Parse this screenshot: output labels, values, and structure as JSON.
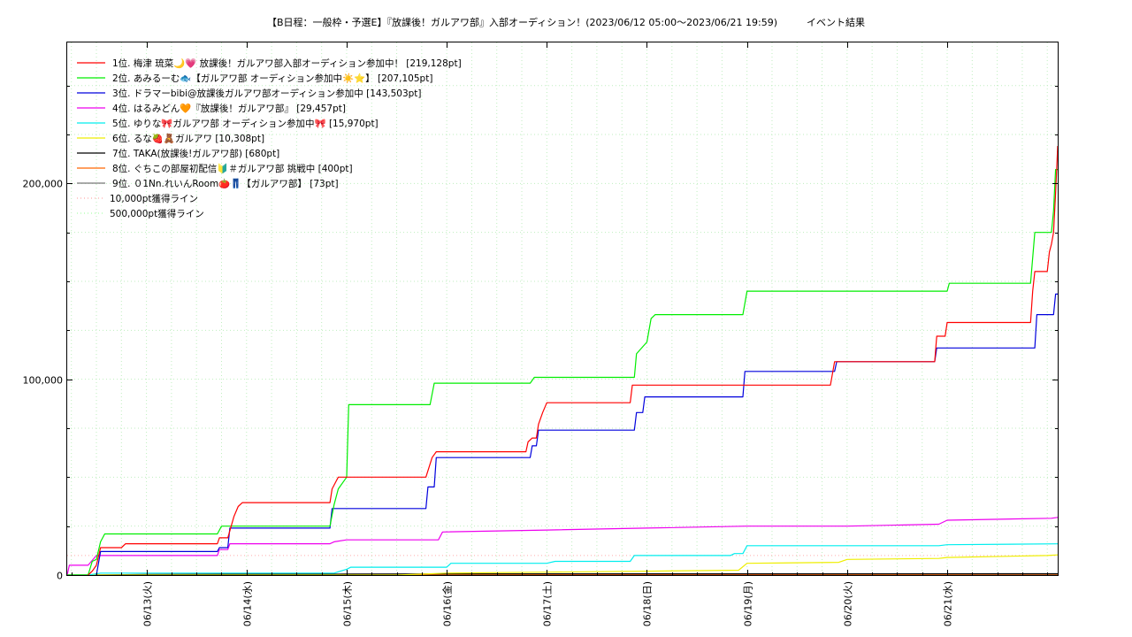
{
  "chart_data": {
    "type": "line",
    "title": "【B日程：一般枠・予選E】『放課後！ガルアワ部』入部オーディション！(2023/06/12 05:00〜2023/06/21 19:59)　　　イベント結果",
    "xlabel": "",
    "ylabel": "",
    "ylim": [
      0,
      272000
    ],
    "xlim": [
      "2023-06-12 05:00",
      "2023-06-22 02:30"
    ],
    "x_tick_labels": [
      "06/13(火)",
      "06/14(水)",
      "06/15(木)",
      "06/16(金)",
      "06/17(土)",
      "06/18(日)",
      "06/19(月)",
      "06/20(火)",
      "06/21(水)"
    ],
    "x_tick_dates": [
      "2023-06-13 00:00",
      "2023-06-14 00:00",
      "2023-06-15 00:00",
      "2023-06-16 00:00",
      "2023-06-17 00:00",
      "2023-06-18 00:00",
      "2023-06-19 00:00",
      "2023-06-20 00:00",
      "2023-06-21 00:00"
    ],
    "y_ticks": [
      0,
      100000,
      200000
    ],
    "y_tick_labels": [
      "0",
      "100,000",
      "200,000"
    ],
    "grid": true,
    "legend_position": "top-left",
    "series": [
      {
        "name": "1位. 梅津 琉菜🌙💗 放課後！ガルアワ部入部オーディション参加中！ [219,128pt]",
        "color": "#ff0000",
        "points": [
          [
            "2023-06-12 10:00",
            0
          ],
          [
            "2023-06-12 11:00",
            2000
          ],
          [
            "2023-06-12 12:00",
            5000
          ],
          [
            "2023-06-12 13:00",
            14000
          ],
          [
            "2023-06-12 18:00",
            14000
          ],
          [
            "2023-06-12 19:00",
            16000
          ],
          [
            "2023-06-13 17:00",
            16000
          ],
          [
            "2023-06-13 17:30",
            19000
          ],
          [
            "2023-06-13 19:30",
            19000
          ],
          [
            "2023-06-13 21:00",
            30000
          ],
          [
            "2023-06-13 22:00",
            35000
          ],
          [
            "2023-06-13 23:00",
            37000
          ],
          [
            "2023-06-14 20:00",
            37000
          ],
          [
            "2023-06-14 20:30",
            44000
          ],
          [
            "2023-06-14 22:00",
            50000
          ],
          [
            "2023-06-15 19:00",
            50000
          ],
          [
            "2023-06-15 20:30",
            60000
          ],
          [
            "2023-06-15 21:30",
            63000
          ],
          [
            "2023-06-16 19:00",
            63000
          ],
          [
            "2023-06-16 19:30",
            68000
          ],
          [
            "2023-06-16 20:30",
            70000
          ],
          [
            "2023-06-16 21:30",
            70000
          ],
          [
            "2023-06-16 22:00",
            77000
          ],
          [
            "2023-06-16 23:00",
            83000
          ],
          [
            "2023-06-17 00:00",
            88000
          ],
          [
            "2023-06-17 20:00",
            88000
          ],
          [
            "2023-06-17 20:30",
            97000
          ],
          [
            "2023-06-18 22:00",
            97000
          ],
          [
            "2023-06-18 23:00",
            97000
          ],
          [
            "2023-06-19 20:00",
            97000
          ],
          [
            "2023-06-19 21:00",
            109000
          ],
          [
            "2023-06-20 21:00",
            109000
          ],
          [
            "2023-06-20 21:30",
            122000
          ],
          [
            "2023-06-20 23:30",
            122000
          ],
          [
            "2023-06-21 00:00",
            129000
          ],
          [
            "2023-06-21 20:00",
            129000
          ],
          [
            "2023-06-21 20:30",
            145000
          ],
          [
            "2023-06-21 21:00",
            155000
          ],
          [
            "2023-06-22 00:00",
            155000
          ],
          [
            "2023-06-22 00:30",
            165000
          ],
          [
            "2023-06-22 01:00",
            169000
          ],
          [
            "2023-06-22 01:30",
            175000
          ],
          [
            "2023-06-22 02:00",
            195000
          ],
          [
            "2023-06-22 02:30",
            219128
          ]
        ]
      },
      {
        "name": "2位. あみるーむ🐟【ガルアワ部 オーディション参加中☀️⭐️】 [207,105pt]",
        "color": "#00ee00",
        "points": [
          [
            "2023-06-12 05:00",
            0
          ],
          [
            "2023-06-12 10:00",
            0
          ],
          [
            "2023-06-12 11:00",
            7000
          ],
          [
            "2023-06-12 12:00",
            8000
          ],
          [
            "2023-06-12 13:00",
            17000
          ],
          [
            "2023-06-12 14:00",
            21000
          ],
          [
            "2023-06-13 17:00",
            21000
          ],
          [
            "2023-06-13 18:00",
            25000
          ],
          [
            "2023-06-14 20:00",
            25000
          ],
          [
            "2023-06-14 21:00",
            36000
          ],
          [
            "2023-06-14 22:00",
            44000
          ],
          [
            "2023-06-15 00:00",
            50000
          ],
          [
            "2023-06-15 00:30",
            87000
          ],
          [
            "2023-06-15 20:00",
            87000
          ],
          [
            "2023-06-15 21:00",
            98000
          ],
          [
            "2023-06-16 20:00",
            98000
          ],
          [
            "2023-06-16 21:00",
            101000
          ],
          [
            "2023-06-17 21:00",
            101000
          ],
          [
            "2023-06-17 21:30",
            113000
          ],
          [
            "2023-06-18 00:00",
            119000
          ],
          [
            "2023-06-18 01:00",
            131000
          ],
          [
            "2023-06-18 02:00",
            133000
          ],
          [
            "2023-06-18 23:00",
            133000
          ],
          [
            "2023-06-19 00:00",
            145000
          ],
          [
            "2023-06-21 00:00",
            145000
          ],
          [
            "2023-06-21 00:30",
            149000
          ],
          [
            "2023-06-21 20:00",
            149000
          ],
          [
            "2023-06-21 21:00",
            175000
          ],
          [
            "2023-06-22 01:00",
            175000
          ],
          [
            "2023-06-22 01:30",
            186000
          ],
          [
            "2023-06-22 02:00",
            207105
          ],
          [
            "2023-06-22 02:30",
            207105
          ]
        ]
      },
      {
        "name": "3位. ドラマーbibi@放課後ガルアワ部オーディション参加中 [143,503pt]",
        "color": "#0000dd",
        "points": [
          [
            "2023-06-12 12:00",
            0
          ],
          [
            "2023-06-12 13:00",
            12000
          ],
          [
            "2023-06-13 17:00",
            12000
          ],
          [
            "2023-06-13 17:30",
            14000
          ],
          [
            "2023-06-13 19:30",
            14000
          ],
          [
            "2023-06-13 20:00",
            24000
          ],
          [
            "2023-06-14 20:00",
            24000
          ],
          [
            "2023-06-14 20:30",
            34000
          ],
          [
            "2023-06-15 19:00",
            34000
          ],
          [
            "2023-06-15 19:30",
            45000
          ],
          [
            "2023-06-15 21:00",
            45000
          ],
          [
            "2023-06-15 21:30",
            60000
          ],
          [
            "2023-06-16 20:00",
            60000
          ],
          [
            "2023-06-16 20:30",
            66000
          ],
          [
            "2023-06-16 21:30",
            66000
          ],
          [
            "2023-06-16 22:00",
            74000
          ],
          [
            "2023-06-17 21:00",
            74000
          ],
          [
            "2023-06-17 21:30",
            83000
          ],
          [
            "2023-06-17 23:00",
            83000
          ],
          [
            "2023-06-17 23:30",
            91000
          ],
          [
            "2023-06-18 23:00",
            91000
          ],
          [
            "2023-06-18 23:30",
            104000
          ],
          [
            "2023-06-19 21:00",
            104000
          ],
          [
            "2023-06-19 21:30",
            109000
          ],
          [
            "2023-06-20 21:00",
            109000
          ],
          [
            "2023-06-20 21:30",
            116000
          ],
          [
            "2023-06-21 21:00",
            116000
          ],
          [
            "2023-06-21 21:30",
            133000
          ],
          [
            "2023-06-22 01:30",
            133000
          ],
          [
            "2023-06-22 02:00",
            143503
          ],
          [
            "2023-06-22 02:30",
            143503
          ]
        ]
      },
      {
        "name": "4位. はるみどん🧡『放課後！ガルアワ部』 [29,457pt]",
        "color": "#ee00ee",
        "points": [
          [
            "2023-06-12 05:00",
            0
          ],
          [
            "2023-06-12 05:30",
            5000
          ],
          [
            "2023-06-12 10:00",
            5000
          ],
          [
            "2023-06-12 12:00",
            10000
          ],
          [
            "2023-06-13 17:00",
            10000
          ],
          [
            "2023-06-13 17:30",
            13000
          ],
          [
            "2023-06-13 19:30",
            13000
          ],
          [
            "2023-06-13 20:00",
            16000
          ],
          [
            "2023-06-14 20:00",
            16000
          ],
          [
            "2023-06-14 21:00",
            17000
          ],
          [
            "2023-06-15 00:00",
            18000
          ],
          [
            "2023-06-15 22:00",
            18000
          ],
          [
            "2023-06-15 23:00",
            22000
          ],
          [
            "2023-06-17 00:00",
            23000
          ],
          [
            "2023-06-18 00:00",
            24000
          ],
          [
            "2023-06-19 00:00",
            25000
          ],
          [
            "2023-06-20 00:00",
            25000
          ],
          [
            "2023-06-20 22:00",
            26000
          ],
          [
            "2023-06-21 00:00",
            28000
          ],
          [
            "2023-06-22 01:00",
            29000
          ],
          [
            "2023-06-22 02:30",
            29457
          ]
        ]
      },
      {
        "name": "5位. ゆりな🎀ガルアワ部 オーディション参加中🎀 [15,970pt]",
        "color": "#00eeee",
        "points": [
          [
            "2023-06-12 05:00",
            0
          ],
          [
            "2023-06-12 10:00",
            0
          ],
          [
            "2023-06-12 13:00",
            1000
          ],
          [
            "2023-06-14 21:00",
            1000
          ],
          [
            "2023-06-15 00:00",
            3000
          ],
          [
            "2023-06-15 01:00",
            4000
          ],
          [
            "2023-06-16 00:00",
            4000
          ],
          [
            "2023-06-16 01:00",
            6000
          ],
          [
            "2023-06-17 00:00",
            6000
          ],
          [
            "2023-06-17 02:00",
            7000
          ],
          [
            "2023-06-17 20:00",
            7000
          ],
          [
            "2023-06-17 21:00",
            10000
          ],
          [
            "2023-06-18 20:00",
            10000
          ],
          [
            "2023-06-18 21:00",
            11000
          ],
          [
            "2023-06-18 23:00",
            11000
          ],
          [
            "2023-06-19 00:00",
            15000
          ],
          [
            "2023-06-20 22:00",
            15000
          ],
          [
            "2023-06-21 00:00",
            15500
          ],
          [
            "2023-06-22 02:30",
            15970
          ]
        ]
      },
      {
        "name": "6位. るな🍓🧸ガルアワ [10,308pt]",
        "color": "#eeee00",
        "points": [
          [
            "2023-06-12 05:00",
            0
          ],
          [
            "2023-06-15 12:00",
            0
          ],
          [
            "2023-06-16 00:00",
            1000
          ],
          [
            "2023-06-17 00:00",
            1500
          ],
          [
            "2023-06-18 00:00",
            2000
          ],
          [
            "2023-06-18 22:00",
            2500
          ],
          [
            "2023-06-19 00:00",
            6000
          ],
          [
            "2023-06-19 22:00",
            6500
          ],
          [
            "2023-06-20 00:00",
            8000
          ],
          [
            "2023-06-20 22:00",
            8500
          ],
          [
            "2023-06-21 00:00",
            9000
          ],
          [
            "2023-06-22 00:00",
            10000
          ],
          [
            "2023-06-22 02:30",
            10308
          ]
        ]
      },
      {
        "name": "7位. TAKA(放課後!ガルアワ部) [680pt]",
        "color": "#000000",
        "points": [
          [
            "2023-06-12 05:00",
            0
          ],
          [
            "2023-06-12 10:00",
            0
          ],
          [
            "2023-06-13 00:00",
            300
          ],
          [
            "2023-06-14 00:00",
            400
          ],
          [
            "2023-06-15 00:00",
            500
          ],
          [
            "2023-06-16 00:00",
            600
          ],
          [
            "2023-06-22 02:30",
            680
          ]
        ]
      },
      {
        "name": "8位. ぐちこの部屋初配信🔰＃ガルアワ部 挑戦中 [400pt]",
        "color": "#ff6600",
        "points": [
          [
            "2023-06-12 05:00",
            0
          ],
          [
            "2023-06-15 00:00",
            100
          ],
          [
            "2023-06-18 00:00",
            200
          ],
          [
            "2023-06-20 00:00",
            300
          ],
          [
            "2023-06-22 02:30",
            400
          ]
        ]
      },
      {
        "name": "9位. ０1Nn.れいんRoom🍅👖【ガルアワ部】 [73pt]",
        "color": "#777777",
        "points": [
          [
            "2023-06-12 05:00",
            0
          ],
          [
            "2023-06-16 00:00",
            30
          ],
          [
            "2023-06-22 02:30",
            73
          ]
        ]
      }
    ],
    "reference_lines": [
      {
        "name": "10,000pt獲得ライン",
        "color": "#ffaaaa",
        "points": [
          [
            "2023-06-12 05:00",
            10000
          ],
          [
            "2023-06-22 02:30",
            10000
          ]
        ]
      },
      {
        "name": "500,000pt獲得ライン",
        "color": "#aaffaa",
        "points": [
          [
            "2023-06-12 05:00",
            0
          ],
          [
            "2023-06-22 02:30",
            0
          ]
        ]
      }
    ]
  }
}
